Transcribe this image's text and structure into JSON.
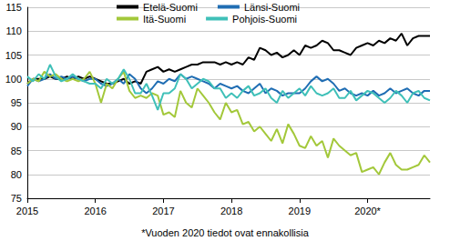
{
  "chart_data": {
    "type": "line",
    "note": "*Vuoden 2020 tiedot ovat ennakollisia",
    "categories": [
      "2015",
      null,
      null,
      null,
      null,
      null,
      null,
      null,
      null,
      null,
      null,
      null,
      "2016",
      null,
      null,
      null,
      null,
      null,
      null,
      null,
      null,
      null,
      null,
      null,
      "2017",
      null,
      null,
      null,
      null,
      null,
      null,
      null,
      null,
      null,
      null,
      null,
      "2018",
      null,
      null,
      null,
      null,
      null,
      null,
      null,
      null,
      null,
      null,
      null,
      "2019",
      null,
      null,
      null,
      null,
      null,
      null,
      null,
      null,
      null,
      null,
      null,
      "2020*",
      null,
      null,
      null,
      null,
      null,
      null,
      null,
      null,
      null,
      null,
      null
    ],
    "series": [
      {
        "name": "Etelä-Suomi",
        "color": "#000000",
        "values": [
          99,
          100,
          100,
          100,
          100.5,
          100,
          100,
          100.5,
          100,
          100.5,
          100,
          100.5,
          100,
          99.5,
          99,
          99,
          99.5,
          100,
          99,
          99.5,
          99,
          101.5,
          102,
          102.5,
          101.5,
          102,
          101.5,
          102,
          102.5,
          103,
          103,
          103.5,
          103.5,
          103.5,
          103,
          103.5,
          103,
          103.5,
          103,
          104.5,
          104,
          106.5,
          106,
          105,
          105.5,
          104.5,
          105,
          106,
          105,
          107,
          106.5,
          107,
          108,
          107.5,
          106,
          106,
          105.5,
          105,
          106.5,
          107,
          107.5,
          107,
          108,
          107.5,
          108.5,
          108,
          109.5,
          107,
          108.5,
          109,
          109,
          109
        ]
      },
      {
        "name": "Länsi-Suomi",
        "color": "#1f6db3",
        "values": [
          98.5,
          100,
          99.5,
          100,
          101,
          100,
          100.5,
          100,
          100.5,
          100,
          99.5,
          100,
          100,
          99,
          98.5,
          99,
          100,
          99,
          101,
          100,
          98,
          97,
          98,
          99.5,
          99,
          100,
          99.5,
          101,
          100,
          100.5,
          100,
          99.5,
          99,
          98,
          99,
          98.5,
          98,
          98.5,
          97.5,
          97,
          98,
          99,
          97,
          98,
          97.5,
          96.5,
          97,
          97,
          97,
          98,
          99.5,
          100.5,
          99.5,
          100,
          99,
          97.5,
          98,
          97,
          96.5,
          97,
          96.5,
          97.5,
          96.5,
          97,
          98,
          97,
          97.5,
          98,
          97,
          96.5,
          97.5,
          97.5
        ]
      },
      {
        "name": "Itä-Suomi",
        "color": "#a3c83a",
        "values": [
          99,
          100,
          99.5,
          101.5,
          100.5,
          101,
          100,
          99.5,
          100,
          99.5,
          100,
          101.5,
          99,
          95,
          99,
          98,
          100,
          101.5,
          97.5,
          96,
          96.5,
          96,
          97,
          96.5,
          92.5,
          93,
          92,
          97.5,
          95,
          94,
          98,
          96.5,
          95,
          93,
          91.5,
          95,
          93,
          93.5,
          90.5,
          91,
          89,
          90,
          88.5,
          87,
          89.5,
          86.5,
          90.5,
          88.5,
          86,
          85.5,
          88,
          86,
          87,
          83.5,
          87.5,
          86,
          85,
          84,
          84.5,
          80.5,
          81,
          81.5,
          80,
          82.5,
          84.5,
          82,
          81,
          81,
          81.5,
          82,
          84,
          82.5
        ]
      },
      {
        "name": "Pohjois-Suomi",
        "color": "#3fc0b8",
        "values": [
          100.5,
          99.5,
          101,
          100,
          103,
          100.5,
          99.5,
          100,
          101,
          100,
          99.5,
          99,
          99,
          98,
          100,
          99,
          100,
          102,
          100,
          97,
          97,
          99,
          96.5,
          93.5,
          97,
          97,
          98,
          101,
          100,
          98,
          99,
          100,
          99.5,
          98,
          98,
          96,
          97,
          96,
          97.5,
          98.5,
          96.5,
          97,
          98,
          96,
          95,
          97.5,
          96,
          97,
          98,
          96.5,
          98.5,
          97,
          96.5,
          97,
          98,
          96,
          96,
          97.5,
          95.5,
          96.5,
          97.5,
          97,
          96,
          95,
          96,
          97.5,
          96.5,
          95,
          97,
          97.5,
          96,
          95.5
        ]
      }
    ],
    "ylim": [
      75,
      115
    ],
    "yticks": [
      75,
      80,
      85,
      90,
      95,
      100,
      105,
      110,
      115
    ],
    "grid": true,
    "legend": "top"
  }
}
